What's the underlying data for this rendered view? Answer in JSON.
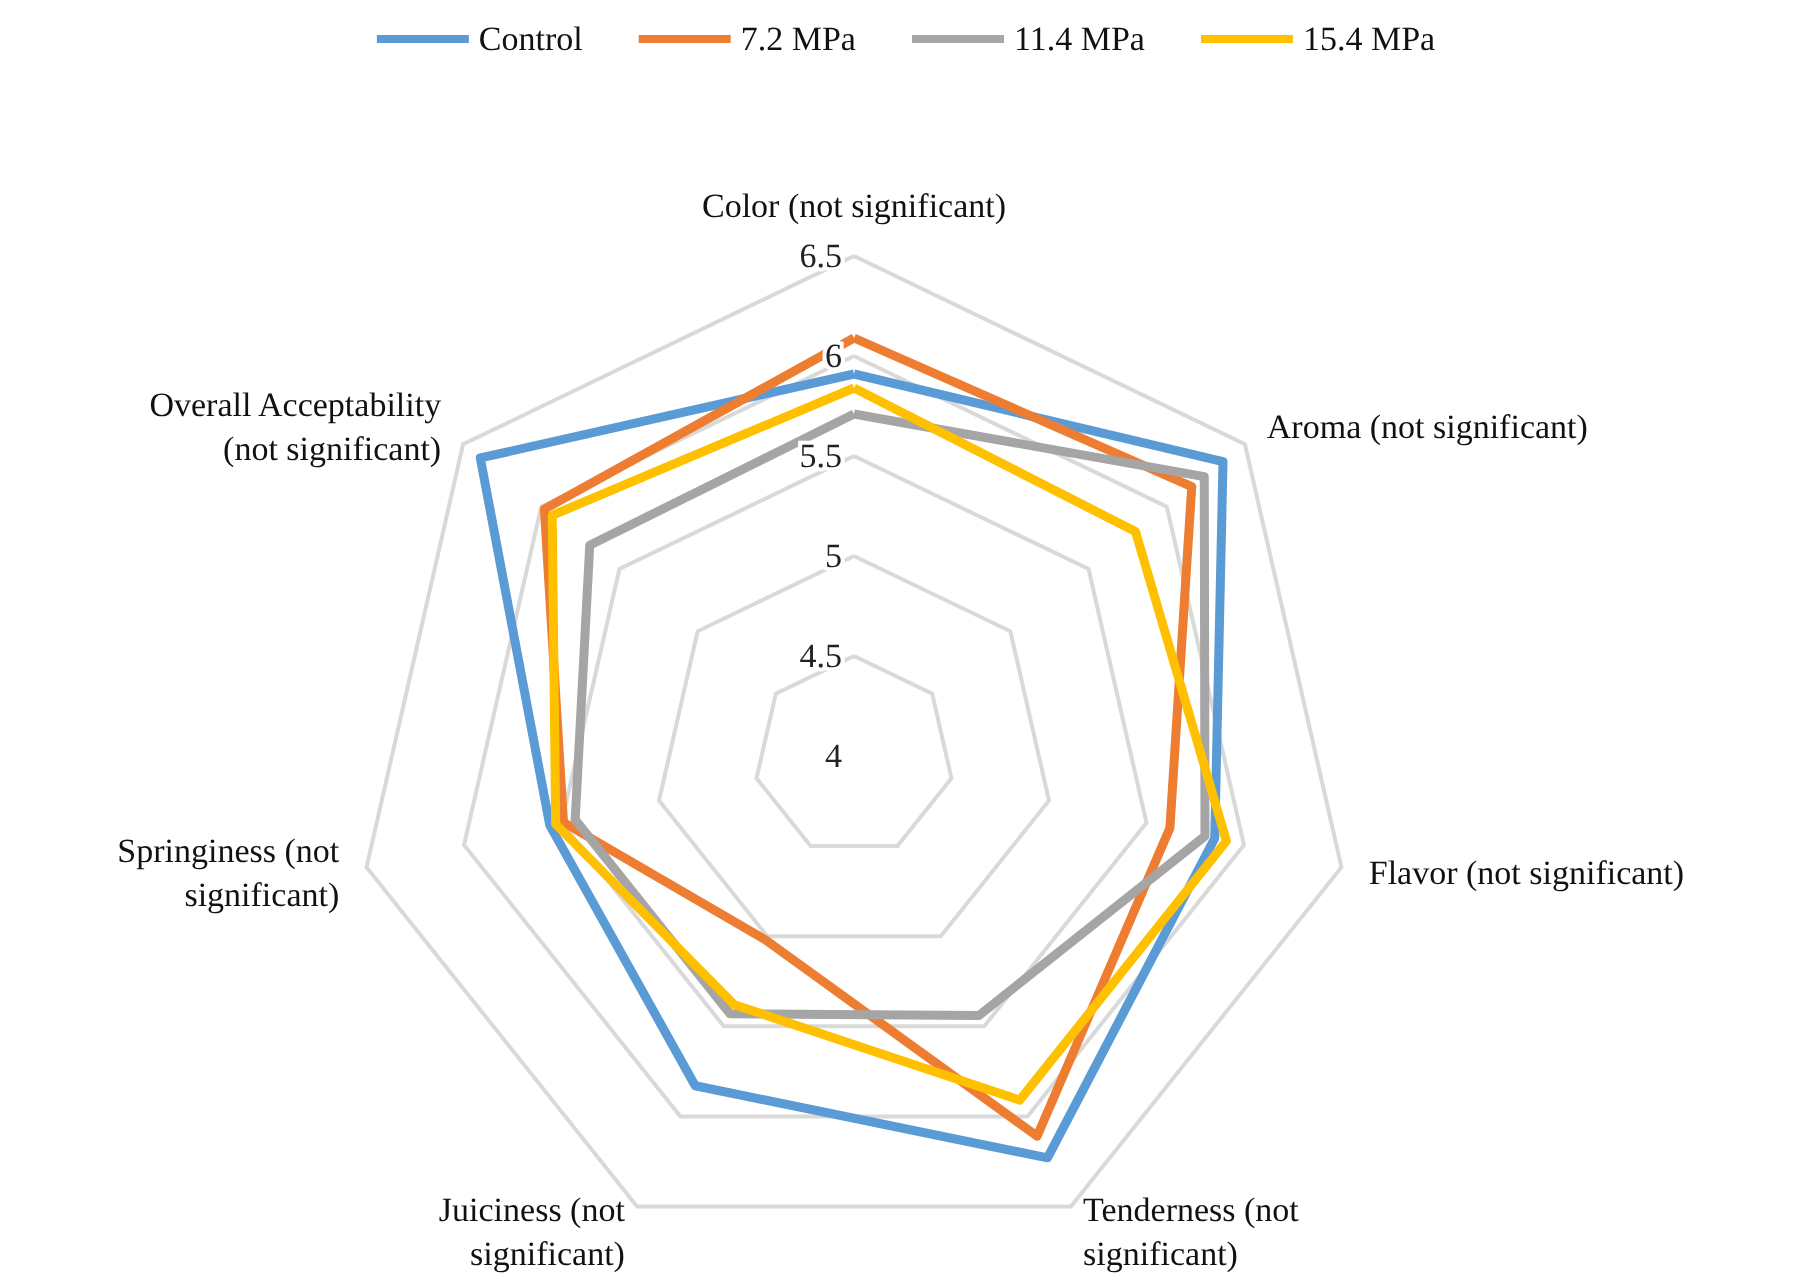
{
  "chart_data": {
    "type": "radar",
    "categories": [
      "Color (not significant)",
      "Aroma (not significant)",
      "Flavor (not significant)",
      "Tenderness (not significant)",
      "Juiciness (not significant)",
      "Springiness (not significant)",
      "Overall Acceptability (not significant)"
    ],
    "ylim": [
      4,
      6.5
    ],
    "yticks": [
      4,
      4.5,
      5,
      5.5,
      6,
      6.5
    ],
    "grid": true,
    "legend": "top",
    "marker": "none",
    "line_style": "solid",
    "series": [
      {
        "name": "Control",
        "color": "#5b9bd5",
        "values": [
          5.91,
          6.36,
          5.85,
          6.23,
          5.83,
          5.56,
          6.39
        ]
      },
      {
        "name": "7.2 MPa",
        "color": "#ed7d31",
        "values": [
          6.09,
          6.16,
          5.62,
          6.11,
          5.02,
          5.49,
          5.98
        ]
      },
      {
        "name": "11.4 MPa",
        "color": "#a5a5a5",
        "values": [
          5.71,
          6.24,
          5.8,
          5.44,
          5.43,
          5.43,
          5.69
        ]
      },
      {
        "name": "15.4 MPa",
        "color": "#ffc000",
        "values": [
          5.84,
          5.8,
          5.91,
          5.91,
          5.38,
          5.53,
          5.93
        ]
      }
    ]
  }
}
